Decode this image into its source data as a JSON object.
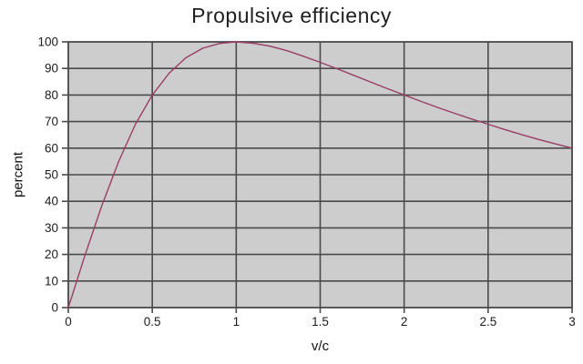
{
  "chart_data": {
    "type": "line",
    "title": "Propulsive efficiency",
    "xlabel": "v/c",
    "ylabel": "percent",
    "xlim": [
      0,
      3
    ],
    "ylim": [
      0,
      100
    ],
    "grid": true,
    "legend": "none",
    "x_ticks": [
      0,
      0.5,
      1,
      1.5,
      2,
      2.5,
      3
    ],
    "x_tick_labels": [
      "0",
      "0.5",
      "1",
      "1.5",
      "2",
      "2.5",
      "3"
    ],
    "y_ticks": [
      0,
      10,
      20,
      30,
      40,
      50,
      60,
      70,
      80,
      90,
      100
    ],
    "y_tick_labels": [
      "0",
      "10",
      "20",
      "30",
      "40",
      "50",
      "60",
      "70",
      "80",
      "90",
      "100"
    ],
    "series": [
      {
        "name": "propulsive efficiency",
        "x": [
          0,
          0.1,
          0.2,
          0.3,
          0.4,
          0.5,
          0.6,
          0.7,
          0.8,
          0.9,
          1.0,
          1.1,
          1.2,
          1.3,
          1.4,
          1.5,
          1.6,
          1.7,
          1.8,
          1.9,
          2.0,
          2.1,
          2.2,
          2.3,
          2.4,
          2.5,
          2.6,
          2.7,
          2.8,
          2.9,
          3.0
        ],
        "y": [
          0,
          19.8,
          38.5,
          55.0,
          69.0,
          80.0,
          88.2,
          94.0,
          97.6,
          99.4,
          100.0,
          99.5,
          98.4,
          96.7,
          94.6,
          92.3,
          89.9,
          87.4,
          84.9,
          82.4,
          80.0,
          77.6,
          75.3,
          73.1,
          71.0,
          69.0,
          67.0,
          65.1,
          63.3,
          61.6,
          60.0
        ],
        "key_points": [
          [
            0.5,
            80
          ],
          [
            1,
            100
          ],
          [
            2,
            80
          ],
          [
            3,
            60
          ]
        ]
      }
    ],
    "colors": {
      "plot_bg": "#cdcdcd",
      "grid": "#4a4a4a",
      "curve": "#9a3d64",
      "text": "#1c1c1c",
      "background": "#ffffff"
    }
  }
}
